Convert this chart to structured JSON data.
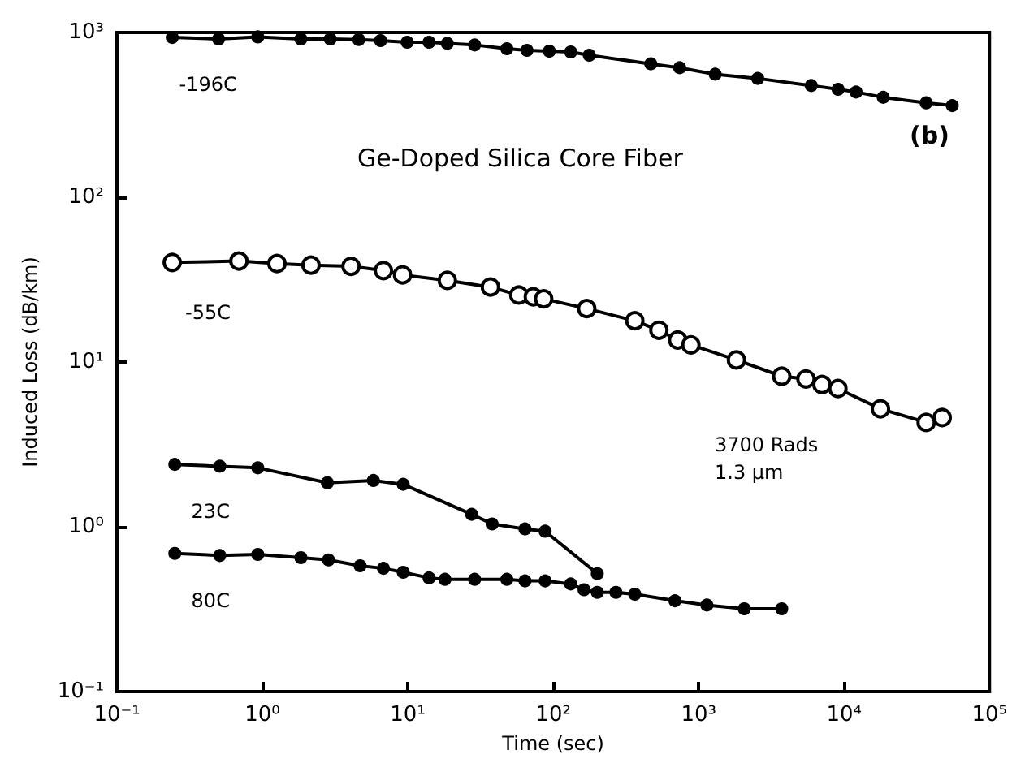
{
  "chart_data": {
    "type": "line",
    "title": "Ge-Doped Silica Core Fiber",
    "xlabel": "Time (sec)",
    "ylabel": "Induced Loss (dB/km)",
    "log": "xy",
    "grid": false,
    "legend": false,
    "line_style": "solid",
    "xlim": [
      0.1,
      100000
    ],
    "ylim": [
      0.1,
      1000
    ],
    "xticks": [
      {
        "value": 0.1,
        "label": "10⁻¹"
      },
      {
        "value": 1,
        "label": "10⁰"
      },
      {
        "value": 10,
        "label": "10¹"
      },
      {
        "value": 100,
        "label": "10²"
      },
      {
        "value": 1000,
        "label": "10³"
      },
      {
        "value": 10000,
        "label": "10⁴"
      },
      {
        "value": 100000,
        "label": "10⁵"
      }
    ],
    "yticks": [
      {
        "value": 0.1,
        "label": "10⁻¹"
      },
      {
        "value": 1,
        "label": "10⁰"
      },
      {
        "value": 10,
        "label": "10¹"
      },
      {
        "value": 100,
        "label": "10²"
      },
      {
        "value": 1000,
        "label": "10³"
      }
    ],
    "annotations": [
      "(b)",
      "3700 Rads",
      "1.3 μm"
    ],
    "series": [
      {
        "name": "-196C",
        "color": "#000000",
        "marker": "circle",
        "x": [
          0.24,
          0.5,
          0.93,
          1.84,
          2.93,
          4.6,
          6.5,
          9.9,
          14,
          18.7,
          28.8,
          48,
          66,
          94,
          132,
          177,
          469,
          741,
          1300,
          2550,
          5950,
          9100,
          12100,
          18600,
          36700,
          55500
        ],
        "values": [
          933,
          913,
          940,
          913,
          913,
          906,
          893,
          873,
          873,
          859,
          840,
          797,
          779,
          770,
          762,
          728,
          645,
          611,
          558,
          526,
          476,
          452,
          435,
          404,
          374,
          360
        ]
      },
      {
        "name": "-55C",
        "color": "#000000",
        "marker": "open_circle",
        "x": [
          0.24,
          0.69,
          1.26,
          2.16,
          4.07,
          6.8,
          9.2,
          18.7,
          37,
          58,
          73,
          86,
          170,
          364,
          533,
          718,
          885,
          1820,
          3730,
          5470,
          7050,
          9080,
          17800,
          36700,
          47300
        ],
        "values": [
          40.2,
          41,
          39.6,
          38.7,
          38.1,
          35.9,
          33.8,
          31.3,
          28.5,
          25.5,
          24.9,
          24.2,
          21.1,
          17.8,
          15.6,
          13.6,
          12.7,
          10.3,
          8.2,
          7.9,
          7.3,
          6.9,
          5.2,
          4.3,
          4.6
        ]
      },
      {
        "name": "23C",
        "color": "#000000",
        "marker": "circle",
        "x": [
          0.25,
          0.51,
          0.93,
          2.8,
          5.8,
          9.3,
          27.5,
          38,
          64,
          88,
          201
        ],
        "values": [
          2.39,
          2.33,
          2.28,
          1.85,
          1.91,
          1.81,
          1.19,
          1.04,
          0.97,
          0.94,
          0.52
        ]
      },
      {
        "name": "80C",
        "color": "#000000",
        "marker": "circle",
        "x": [
          0.25,
          0.51,
          0.93,
          1.84,
          2.85,
          4.7,
          6.8,
          9.3,
          14,
          18,
          28.8,
          48,
          64,
          88,
          132,
          163,
          201,
          270,
          364,
          687,
          1140,
          2060,
          3730
        ],
        "values": [
          0.69,
          0.67,
          0.68,
          0.65,
          0.63,
          0.58,
          0.56,
          0.53,
          0.49,
          0.48,
          0.48,
          0.48,
          0.47,
          0.47,
          0.45,
          0.415,
          0.4,
          0.4,
          0.39,
          0.356,
          0.335,
          0.318,
          0.318
        ]
      }
    ]
  }
}
